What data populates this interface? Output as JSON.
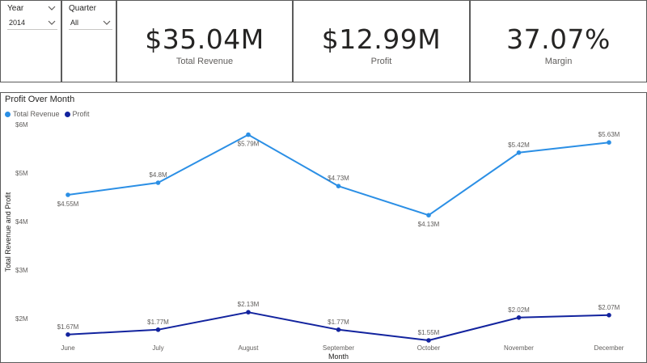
{
  "slicers": {
    "year": {
      "title": "Year",
      "value": "2014"
    },
    "quarter": {
      "title": "Quarter",
      "value": "All"
    }
  },
  "cards": {
    "total_revenue": {
      "value": "$35.04M",
      "label": "Total Revenue"
    },
    "profit": {
      "value": "$12.99M",
      "label": "Profit"
    },
    "margin": {
      "value": "37.07%",
      "label": "Margin"
    }
  },
  "colors": {
    "total_revenue": "#2b8fe5",
    "profit": "#12239e",
    "border": "#5b5b5b"
  },
  "icons": {
    "dropdown": "chevron-down-icon"
  },
  "chart_data": {
    "type": "line",
    "title": "Profit Over Month",
    "xlabel": "Month",
    "ylabel": "Total Revenue and Profit",
    "categories": [
      "June",
      "July",
      "August",
      "September",
      "October",
      "November",
      "December"
    ],
    "yticks": [
      2,
      3,
      4,
      5,
      6
    ],
    "ytick_labels": [
      "$2M",
      "$3M",
      "$4M",
      "$5M",
      "$6M"
    ],
    "ylim": [
      1.55,
      6.0
    ],
    "grid": false,
    "legend_position": "top-left",
    "series": [
      {
        "name": "Total Revenue",
        "values": [
          4.55,
          4.8,
          5.79,
          4.73,
          4.13,
          5.42,
          5.63
        ],
        "labels": [
          "$4.55M",
          "$4.8M",
          "$5.79M",
          "$4.73M",
          "$4.13M",
          "$5.42M",
          "$5.63M"
        ],
        "label_positions": [
          "below",
          "above",
          "below",
          "above",
          "below",
          "above",
          "above"
        ]
      },
      {
        "name": "Profit",
        "values": [
          1.67,
          1.77,
          2.13,
          1.77,
          1.55,
          2.02,
          2.07
        ],
        "labels": [
          "$1.67M",
          "$1.77M",
          "$2.13M",
          "$1.77M",
          "$1.55M",
          "$2.02M",
          "$2.07M"
        ],
        "label_positions": [
          "above",
          "above",
          "above",
          "above",
          "above",
          "above",
          "above"
        ]
      }
    ]
  }
}
